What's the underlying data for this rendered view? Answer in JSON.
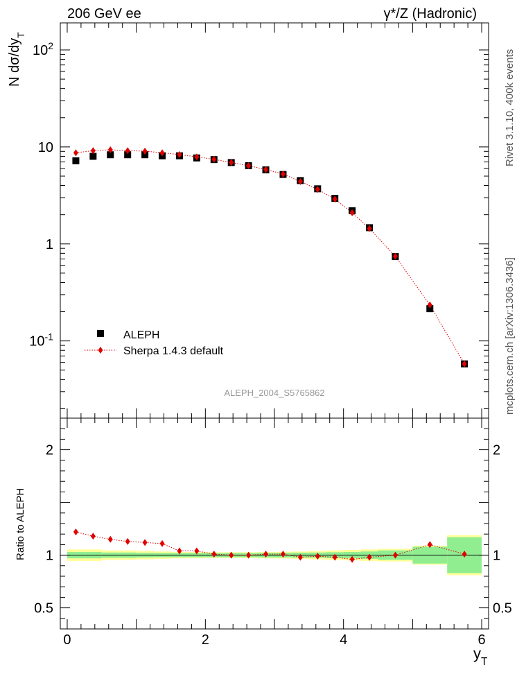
{
  "header": {
    "left": "206 GeV ee",
    "right": "γ*/Z (Hadronic)"
  },
  "side": {
    "rivet": "Rivet 3.1.10,  400k events",
    "mcplots": "mcplots.cern.ch [arXiv:1306.3436]"
  },
  "watermark": "ALEPH_2004_S5765862",
  "chart_data": [
    {
      "type": "scatter",
      "panel": "main",
      "ylabel": "N dσ/dy_T",
      "yscale": "log",
      "ylim": [
        0.016,
        190
      ],
      "xlim": [
        -0.1,
        6.1
      ],
      "y_ticks": [
        "10^-1",
        "1",
        "10",
        "10^2"
      ],
      "legend": {
        "placement": "middle-left",
        "entries": [
          "ALEPH",
          "Sherpa 1.4.3 default"
        ]
      },
      "series": [
        {
          "name": "ALEPH",
          "marker": "square",
          "color": "#000000",
          "x": [
            0.125,
            0.375,
            0.625,
            0.875,
            1.125,
            1.375,
            1.625,
            1.875,
            2.125,
            2.375,
            2.625,
            2.875,
            3.125,
            3.375,
            3.625,
            3.875,
            4.125,
            4.375,
            4.75,
            5.25,
            5.75
          ],
          "y": [
            7.2,
            8.0,
            8.3,
            8.3,
            8.3,
            8.1,
            8.1,
            7.7,
            7.4,
            6.9,
            6.4,
            5.8,
            5.2,
            4.5,
            3.7,
            2.95,
            2.2,
            1.47,
            0.74,
            0.215,
            0.058
          ]
        },
        {
          "name": "Sherpa 1.4.3 default",
          "marker": "diamond",
          "color": "#e00000",
          "x": [
            0.125,
            0.375,
            0.625,
            0.875,
            1.125,
            1.375,
            1.625,
            1.875,
            2.125,
            2.375,
            2.625,
            2.875,
            3.125,
            3.375,
            3.625,
            3.875,
            4.125,
            4.375,
            4.75,
            5.25,
            5.75
          ],
          "y": [
            8.7,
            9.15,
            9.35,
            9.15,
            9.05,
            8.7,
            8.35,
            7.9,
            7.45,
            6.9,
            6.4,
            5.85,
            5.25,
            4.4,
            3.65,
            2.9,
            2.1,
            1.44,
            0.745,
            0.235,
            0.058
          ]
        }
      ]
    },
    {
      "type": "scatter",
      "panel": "ratio",
      "ylabel": "Ratio to ALEPH",
      "xlabel": "y_T",
      "ylim": [
        0.3,
        2.3
      ],
      "xlim": [
        -0.1,
        6.1
      ],
      "x_ticks": [
        "0",
        "2",
        "4",
        "6"
      ],
      "y_ticks": [
        "0.5",
        "1",
        "2"
      ],
      "bands": {
        "x_edges": [
          0,
          0.25,
          0.5,
          0.75,
          1.0,
          1.25,
          1.5,
          1.75,
          2.0,
          2.25,
          2.5,
          2.75,
          3.0,
          3.25,
          3.5,
          3.75,
          4.0,
          4.25,
          4.5,
          5.0,
          5.5,
          6.0
        ],
        "stat_half_width": [
          0.03,
          0.03,
          0.025,
          0.025,
          0.022,
          0.02,
          0.02,
          0.02,
          0.02,
          0.02,
          0.02,
          0.022,
          0.022,
          0.024,
          0.025,
          0.028,
          0.03,
          0.035,
          0.045,
          0.08,
          0.17
        ],
        "total_half_width": [
          0.055,
          0.055,
          0.045,
          0.045,
          0.04,
          0.035,
          0.03,
          0.03,
          0.028,
          0.028,
          0.028,
          0.03,
          0.032,
          0.035,
          0.04,
          0.045,
          0.05,
          0.055,
          0.06,
          0.09,
          0.19
        ],
        "stat_color": "#90ee90",
        "total_color": "#ffff99"
      },
      "series": [
        {
          "name": "Sherpa 1.4.3 default",
          "marker": "diamond",
          "color": "#e00000",
          "x": [
            0.125,
            0.375,
            0.625,
            0.875,
            1.125,
            1.375,
            1.625,
            1.875,
            2.125,
            2.375,
            2.625,
            2.875,
            3.125,
            3.375,
            3.625,
            3.875,
            4.125,
            4.375,
            4.75,
            5.25,
            5.75
          ],
          "y": [
            1.22,
            1.18,
            1.15,
            1.13,
            1.12,
            1.11,
            1.04,
            1.04,
            1.01,
            1.0,
            1.0,
            1.01,
            1.01,
            0.98,
            0.99,
            0.98,
            0.96,
            0.98,
            1.0,
            1.1,
            1.01
          ]
        }
      ]
    }
  ]
}
